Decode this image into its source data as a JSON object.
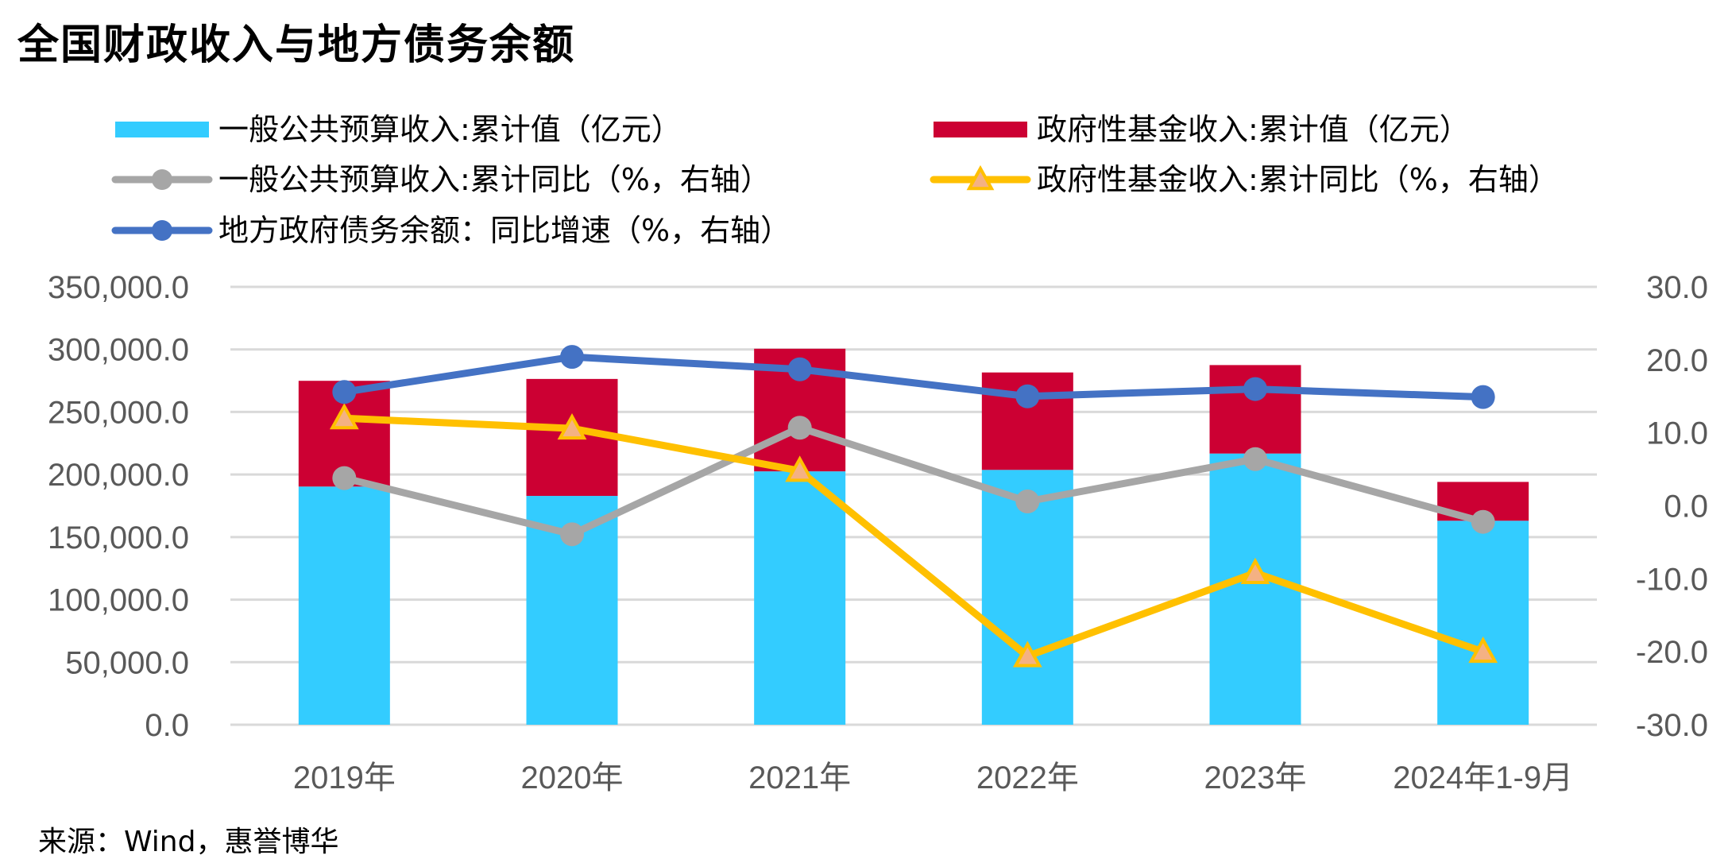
{
  "title": "全国财政收入与地方债务余额",
  "source": "来源：Wind，惠誉博华",
  "chart_data": {
    "type": "bar",
    "categories": [
      "2019年",
      "2020年",
      "2021年",
      "2022年",
      "2023年",
      "2024年1-9月"
    ],
    "left_axis": {
      "ylim": [
        0,
        350000
      ],
      "ticks": [
        "350,000.0",
        "300,000.0",
        "250,000.0",
        "200,000.0",
        "150,000.0",
        "100,000.0",
        "50,000.0",
        "0.0"
      ]
    },
    "right_axis": {
      "ylim": [
        -30,
        30
      ],
      "ticks": [
        "30.0",
        "20.0",
        "10.0",
        "0.0",
        "-10.0",
        "-20.0",
        "-30.0"
      ]
    },
    "bar_series": [
      {
        "name": "一般公共预算收入:累计值（亿元）",
        "color": "#33CCFF",
        "values": [
          190390,
          182914,
          202539,
          203703,
          216784,
          163059
        ]
      },
      {
        "name": "政府性基金收入:累计值（亿元）",
        "color": "#CC0033",
        "values": [
          84518,
          93489,
          98024,
          77879,
          70705,
          31036
        ]
      }
    ],
    "line_series": [
      {
        "name": "一般公共预算收入:累计同比（%，右轴）",
        "color": "#A6A6A6",
        "marker": "circle",
        "values": [
          3.8,
          -3.9,
          10.7,
          0.6,
          6.4,
          -2.2
        ]
      },
      {
        "name": "政府性基金收入:累计同比（%，右轴）",
        "color": "#FFC000",
        "marker": "triangle",
        "values": [
          12.0,
          10.6,
          4.8,
          -20.6,
          -9.2,
          -20.0
        ]
      },
      {
        "name": "地方政府债务余额：同比增速（%，右轴）",
        "color": "#4472C4",
        "marker": "circle",
        "values": [
          15.6,
          20.4,
          18.7,
          15.0,
          16.0,
          14.9
        ]
      }
    ],
    "gridlines": true,
    "legend_position": "top"
  }
}
